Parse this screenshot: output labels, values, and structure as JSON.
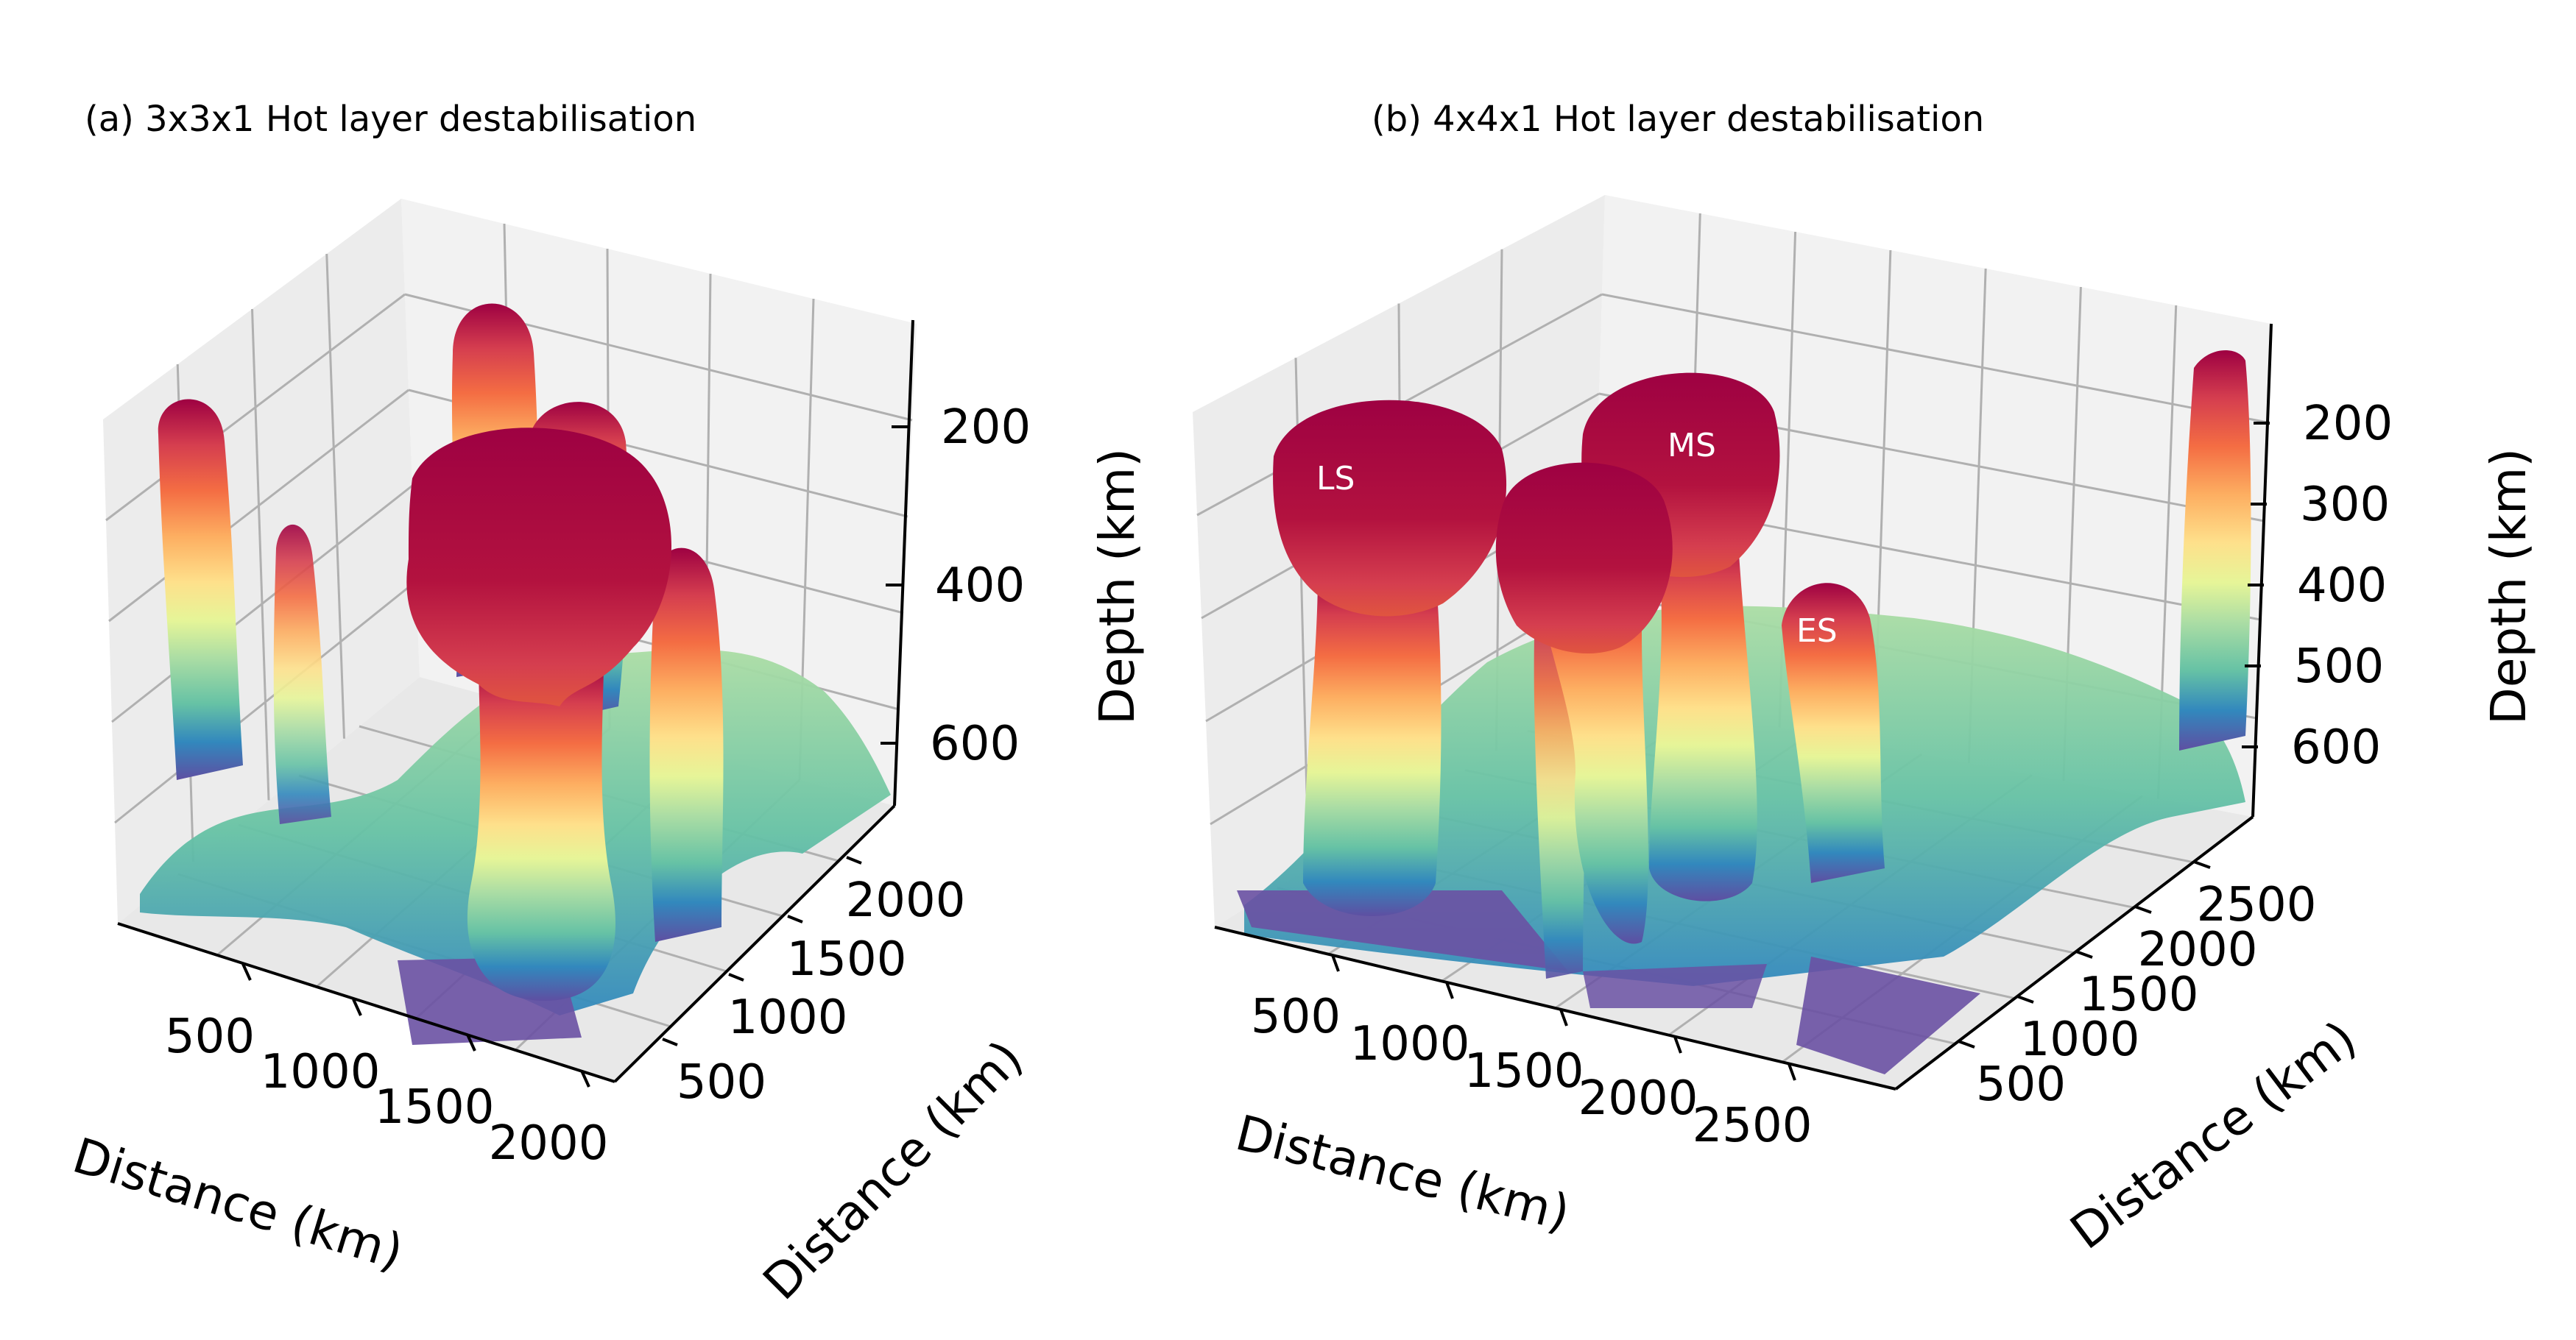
{
  "figure": {
    "colormap": "Spectral_r",
    "colormap_stops": [
      "#5e4fa2",
      "#3288bd",
      "#66c2a5",
      "#abdda4",
      "#e6f598",
      "#ffffbf",
      "#fee08b",
      "#fdae61",
      "#f46d43",
      "#d53e4f",
      "#9e0142"
    ],
    "pane_color": "#f2f2f2",
    "grid_color": "#b0b0b0"
  },
  "chart_data": [
    {
      "type": "surface3d",
      "title": "(a) 3x3x1 Hot layer destabilisation",
      "xlabel": "Distance (km)",
      "ylabel": "Distance (km)",
      "zlabel": "Depth (km)",
      "x_ticks": [
        "500",
        "1000",
        "1500",
        "2000"
      ],
      "y_ticks": [
        "500",
        "1000",
        "1500",
        "2000"
      ],
      "z_ticks": [
        "200",
        "400",
        "600"
      ],
      "zlim": [
        700,
        100
      ],
      "plumes": [
        {
          "x": 400,
          "y": 1950,
          "top_depth": 230
        },
        {
          "x": 1500,
          "y": 2200,
          "top_depth": 100
        },
        {
          "x": 1700,
          "y": 1900,
          "top_depth": 210
        },
        {
          "x": 1200,
          "y": 1000,
          "top_depth": 290
        },
        {
          "x": 750,
          "y": 1500,
          "top_depth": 400
        },
        {
          "x": 2050,
          "y": 1100,
          "top_depth": 420
        }
      ]
    },
    {
      "type": "surface3d",
      "title": "(b) 4x4x1 Hot layer destabilisation",
      "xlabel": "Distance (km)",
      "ylabel": "Distance (km)",
      "zlabel": "Depth (km)",
      "x_ticks": [
        "500",
        "1000",
        "1500",
        "2000",
        "2500"
      ],
      "y_ticks": [
        "500",
        "1000",
        "1500",
        "2000",
        "2500"
      ],
      "z_ticks": [
        "200",
        "300",
        "400",
        "500",
        "600"
      ],
      "zlim": [
        680,
        120
      ],
      "annotations": [
        "LS",
        "MS",
        "ES"
      ],
      "plumes": [
        {
          "label": "LS",
          "x": 600,
          "y": 1950,
          "top_depth": 210
        },
        {
          "label": "MS",
          "x": 1750,
          "y": 2350,
          "top_depth": 180
        },
        {
          "x": 1200,
          "y": 1350,
          "top_depth": 230
        },
        {
          "label": "ES",
          "x": 2200,
          "y": 1600,
          "top_depth": 430
        },
        {
          "x": 3050,
          "y": 2700,
          "top_depth": 140
        },
        {
          "x": 1000,
          "y": 1200,
          "top_depth": 450
        }
      ]
    }
  ]
}
